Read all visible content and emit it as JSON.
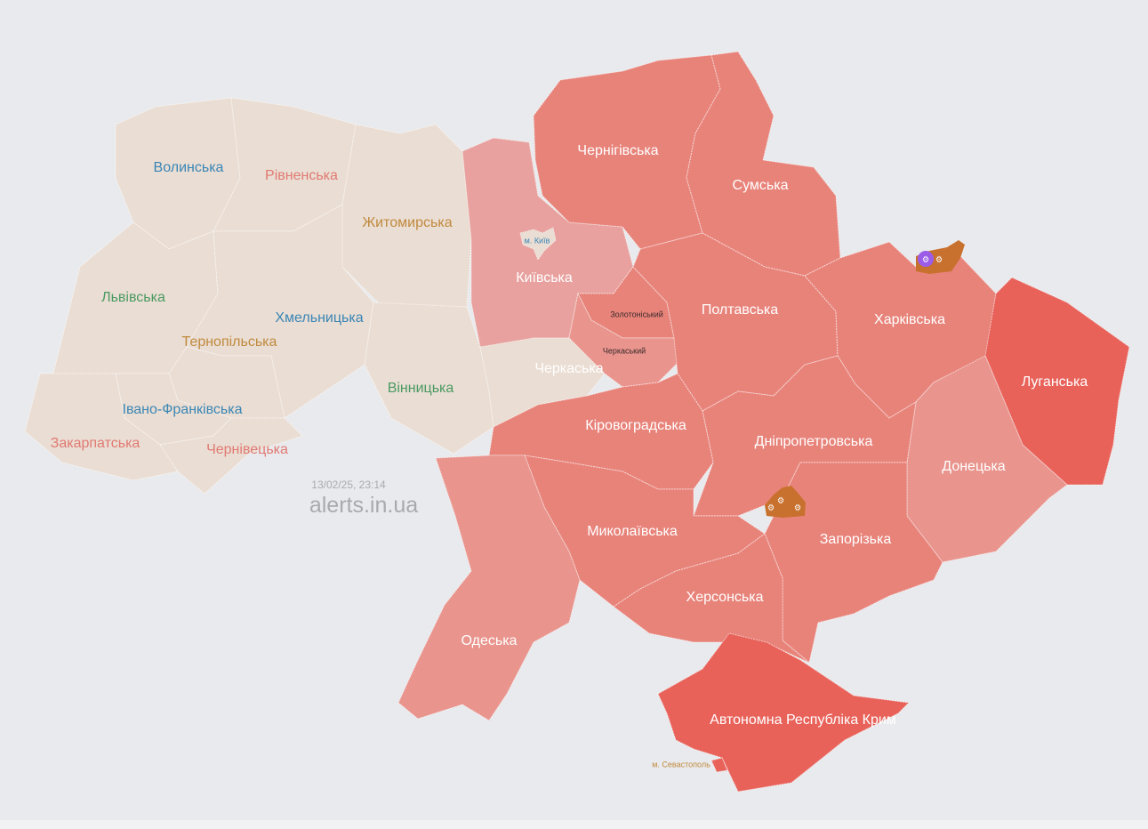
{
  "map": {
    "timestamp": "13/02/25, 23:14",
    "site": "alerts.in.ua",
    "colors": {
      "background": "#e9eaed",
      "no_alert": "#eaddd3",
      "alert": "#e8837a",
      "alert_light": "#e8a19e",
      "alert_medium": "#e9948d",
      "alert_strong": "#e8625a",
      "artillery": "#c8712e",
      "drone_marker": "#9b5ce8"
    },
    "regions": [
      {
        "id": "volynska",
        "label": "Волинська",
        "status": "none",
        "label_color": "#3a86b5"
      },
      {
        "id": "rivnenska",
        "label": "Рівненська",
        "status": "none",
        "label_color": "#e07a72"
      },
      {
        "id": "zhytomyrska",
        "label": "Житомирська",
        "status": "none",
        "label_color": "#c08a3e"
      },
      {
        "id": "lvivska",
        "label": "Львівська",
        "status": "none",
        "label_color": "#4a9a62"
      },
      {
        "id": "khmelnytska",
        "label": "Хмельницька",
        "status": "none",
        "label_color": "#3a86b5"
      },
      {
        "id": "ternopilska",
        "label": "Тернопільська",
        "status": "none",
        "label_color": "#c08a3e"
      },
      {
        "id": "vinnytska",
        "label": "Вінницька",
        "status": "none",
        "label_color": "#4a9a62"
      },
      {
        "id": "ivano-frankivska",
        "label": "Івано-Франківська",
        "status": "none",
        "label_color": "#3a86b5"
      },
      {
        "id": "zakarpatska",
        "label": "Закарпатська",
        "status": "none",
        "label_color": "#e07a72"
      },
      {
        "id": "chernivetska",
        "label": "Чернівецька",
        "status": "none",
        "label_color": "#e07a72"
      },
      {
        "id": "kyivska",
        "label": "Київська",
        "status": "alert",
        "label_color": "#ffffff"
      },
      {
        "id": "kyiv-city",
        "label": "м. Київ",
        "status": "none",
        "label_color": "#3a86b5"
      },
      {
        "id": "cherkaska",
        "label": "Черкаська",
        "status": "partial",
        "label_color": "#ffffff"
      },
      {
        "id": "zolotoniskyi",
        "label": "Золотоніський",
        "status": "alert",
        "label_color": "#3a2a2a"
      },
      {
        "id": "cherkaskyi",
        "label": "Черкаський",
        "status": "alert",
        "label_color": "#3a2a2a"
      },
      {
        "id": "chernihivska",
        "label": "Чернігівська",
        "status": "alert",
        "label_color": "#ffffff"
      },
      {
        "id": "sumska",
        "label": "Сумська",
        "status": "alert",
        "label_color": "#ffffff"
      },
      {
        "id": "poltavska",
        "label": "Полтавська",
        "status": "alert",
        "label_color": "#ffffff"
      },
      {
        "id": "kharkivska",
        "label": "Харківська",
        "status": "alert",
        "label_color": "#ffffff"
      },
      {
        "id": "luhanska",
        "label": "Луганська",
        "status": "alert",
        "label_color": "#ffffff"
      },
      {
        "id": "donetska",
        "label": "Донецька",
        "status": "alert",
        "label_color": "#ffffff"
      },
      {
        "id": "dnipropetrovska",
        "label": "Дніпропетровська",
        "status": "alert",
        "label_color": "#ffffff"
      },
      {
        "id": "kirovohradska",
        "label": "Кіровоградська",
        "status": "alert",
        "label_color": "#ffffff"
      },
      {
        "id": "zaporizka",
        "label": "Запорізька",
        "status": "alert",
        "label_color": "#ffffff"
      },
      {
        "id": "mykolaivska",
        "label": "Миколаївська",
        "status": "alert",
        "label_color": "#ffffff"
      },
      {
        "id": "khersonska",
        "label": "Херсонська",
        "status": "alert",
        "label_color": "#ffffff"
      },
      {
        "id": "odeska",
        "label": "Одеська",
        "status": "alert",
        "label_color": "#ffffff"
      },
      {
        "id": "crimea",
        "label": "Автономна Республіка Крим",
        "status": "alert",
        "label_color": "#ffffff"
      },
      {
        "id": "sevastopol",
        "label": "м. Севастополь",
        "status": "alert",
        "label_color": "#c08a3e"
      }
    ],
    "markers": [
      {
        "type": "drone-icon",
        "region": "kharkivska"
      },
      {
        "type": "artillery-icon",
        "region": "kharkivska"
      },
      {
        "type": "artillery-icon",
        "region": "dnipropetrovska"
      }
    ]
  }
}
